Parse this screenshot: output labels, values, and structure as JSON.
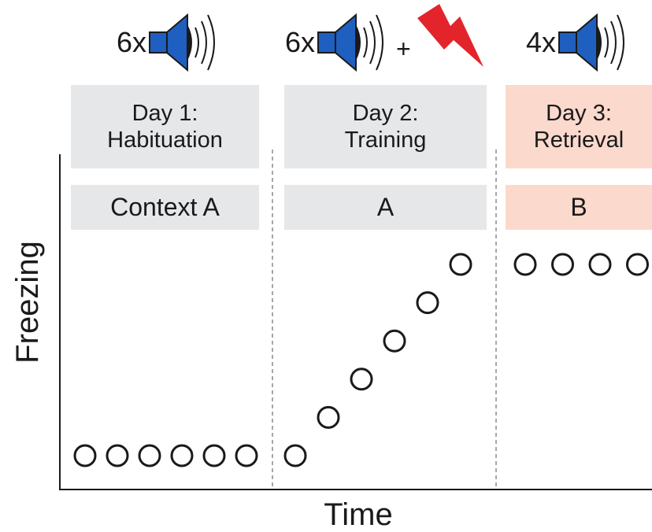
{
  "axes": {
    "y_label": "Freezing",
    "x_label": "Time"
  },
  "colors": {
    "panel_gray": "#e6e7e8",
    "panel_pink": "#fbd9cc",
    "speaker_blue": "#1f5fbf",
    "shock_red": "#e3242b"
  },
  "phases": [
    {
      "stimulus_count": "6x",
      "stimulus_icons": [
        "speaker-icon"
      ],
      "title_line1": "Day 1:",
      "title_line2": "Habituation",
      "context": "Context A",
      "freezing_levels": [
        0,
        0,
        0,
        0,
        0,
        0
      ]
    },
    {
      "stimulus_count": "6x",
      "stimulus_icons": [
        "speaker-icon",
        "lightning-bolt-icon"
      ],
      "plus_symbol": "+",
      "title_line1": "Day 2:",
      "title_line2": "Training",
      "context": "A",
      "freezing_levels": [
        0,
        0.2,
        0.4,
        0.6,
        0.8,
        1
      ]
    },
    {
      "stimulus_count": "4x",
      "stimulus_icons": [
        "speaker-icon"
      ],
      "title_line1": "Day 3:",
      "title_line2": "Retrieval",
      "context": "B",
      "freezing_levels": [
        1,
        1,
        1,
        1
      ]
    }
  ]
}
